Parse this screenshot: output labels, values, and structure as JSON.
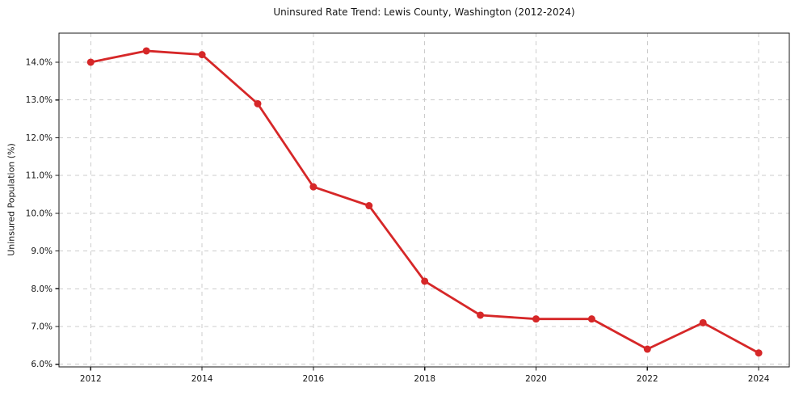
{
  "chart_data": {
    "type": "line",
    "title": "Uninsured Rate Trend: Lewis County, Washington (2012-2024)",
    "xlabel": "",
    "ylabel": "Uninsured Population (%)",
    "x": [
      2012,
      2013,
      2014,
      2015,
      2016,
      2017,
      2018,
      2019,
      2020,
      2021,
      2022,
      2023,
      2024
    ],
    "values": [
      14.0,
      14.3,
      14.2,
      12.9,
      10.7,
      10.2,
      8.2,
      7.3,
      7.2,
      7.2,
      6.4,
      7.1,
      6.3
    ],
    "xlim": [
      2011.43,
      2024.55
    ],
    "ylim": [
      5.93,
      14.77
    ],
    "x_tick_values": [
      2012,
      2014,
      2016,
      2018,
      2020,
      2022,
      2024
    ],
    "x_tick_labels": [
      "2012",
      "2014",
      "2016",
      "2018",
      "2020",
      "2022",
      "2024"
    ],
    "y_tick_values": [
      6.0,
      7.0,
      8.0,
      9.0,
      10.0,
      11.0,
      12.0,
      13.0,
      14.0
    ],
    "y_tick_labels": [
      "6.0%",
      "7.0%",
      "8.0%",
      "9.0%",
      "10.0%",
      "11.0%",
      "12.0%",
      "13.0%",
      "14.0%"
    ],
    "grid": true,
    "grid_style": "dashed",
    "legend": false,
    "line_color": "#d62728",
    "marker_color": "#d62728",
    "grid_color": "#cccccc",
    "spine_color": "#1a1a1a",
    "marker": "o"
  }
}
